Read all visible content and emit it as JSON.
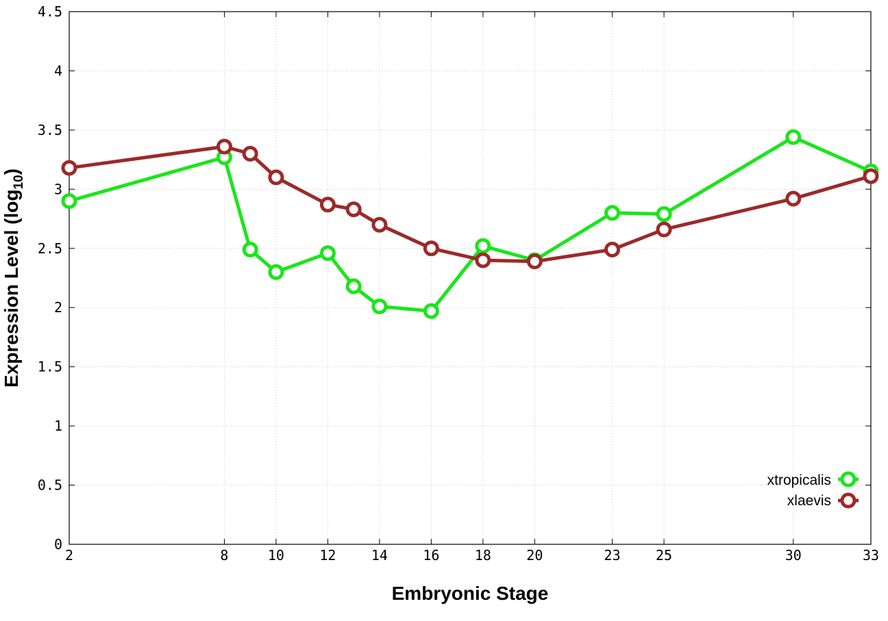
{
  "chart_data": {
    "type": "line",
    "xlabel": "Embryonic Stage",
    "ylabel_main": "Expression Level (log",
    "ylabel_sub": "10",
    "ylabel_end": ")",
    "xlim": [
      2,
      33
    ],
    "ylim": [
      0,
      4.5
    ],
    "x_ticks": [
      2,
      8,
      10,
      12,
      14,
      16,
      18,
      20,
      23,
      25,
      30,
      33
    ],
    "y_ticks": [
      0,
      0.5,
      1,
      1.5,
      2,
      2.5,
      3,
      3.5,
      4,
      4.5
    ],
    "y_tick_labels": [
      "0",
      "0.5",
      "1",
      "1.5",
      "2",
      "2.5",
      "3",
      "3.5",
      "4",
      "4.5"
    ],
    "grid": true,
    "legend_position": "bottom-right",
    "x": [
      2,
      8,
      9,
      10,
      12,
      13,
      14,
      16,
      18,
      20,
      23,
      25,
      30,
      33
    ],
    "series": [
      {
        "name": "xtropicalis",
        "color": "#19e619",
        "values": [
          2.9,
          3.27,
          2.49,
          2.3,
          2.46,
          2.18,
          2.01,
          1.97,
          2.52,
          2.4,
          2.8,
          2.79,
          3.44,
          3.15
        ]
      },
      {
        "name": "xlaevis",
        "color": "#9b2a2a",
        "values": [
          3.18,
          3.36,
          3.3,
          3.1,
          2.87,
          2.83,
          2.7,
          2.5,
          2.4,
          2.39,
          2.49,
          2.66,
          2.92,
          3.11
        ]
      }
    ]
  }
}
